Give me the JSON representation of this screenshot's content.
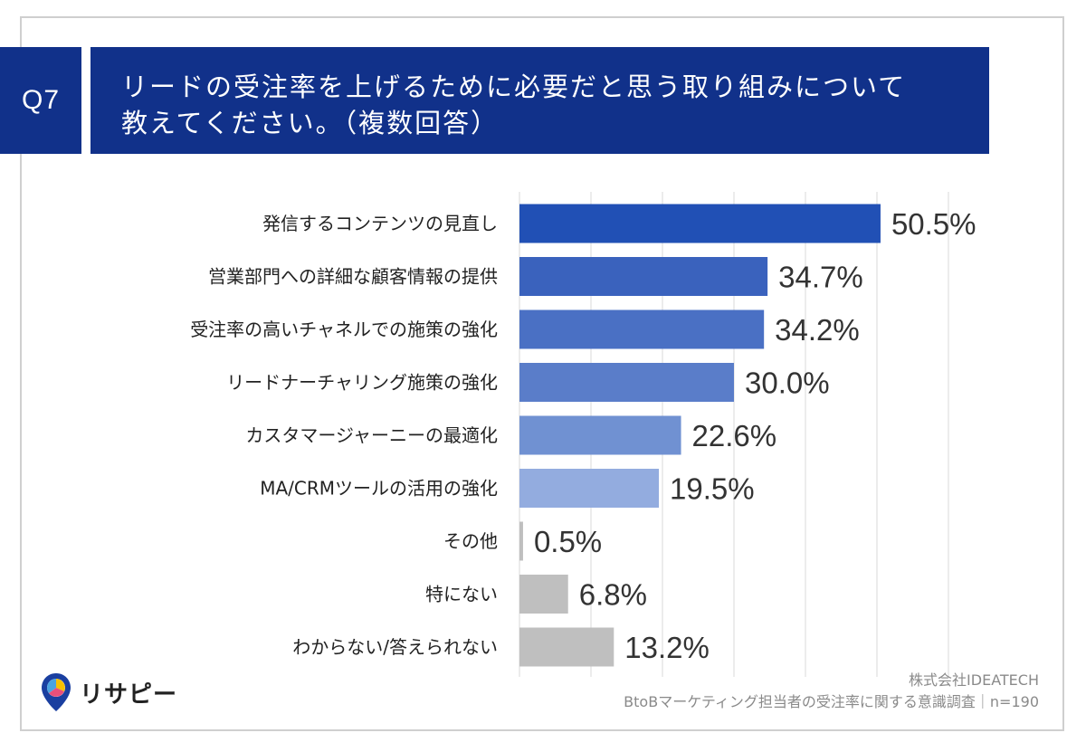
{
  "header": {
    "badge": "Q7",
    "title_line1": "リードの受注率を上げるために必要だと思う取り組みについて",
    "title_line2": "教えてください。（複数回答）"
  },
  "chart_data": {
    "type": "bar",
    "orientation": "horizontal",
    "categories": [
      "発信するコンテンツの見直し",
      "営業部門への詳細な顧客情報の提供",
      "受注率の高いチャネルでの施策の強化",
      "リードナーチャリング施策の強化",
      "カスタマージャーニーの最適化",
      "MA/CRMツールの活用の強化",
      "その他",
      "特にない",
      "わからない/答えられない"
    ],
    "values": [
      50.5,
      34.7,
      34.2,
      30.0,
      22.6,
      19.5,
      0.5,
      6.8,
      13.2
    ],
    "value_labels": [
      "50.5%",
      "34.7%",
      "34.2%",
      "30.0%",
      "22.6%",
      "19.5%",
      "0.5%",
      "6.8%",
      "13.2%"
    ],
    "bar_colors": [
      "#2150b5",
      "#3a62bd",
      "#4a70c4",
      "#5a7dc9",
      "#7091d2",
      "#93acdf",
      "#bfbfbf",
      "#bfbfbf",
      "#bfbfbf"
    ],
    "xlim": [
      0,
      60
    ],
    "grid": true
  },
  "footer": {
    "company": "株式会社IDEATECH",
    "survey": "BtoBマーケティング担当者の受注率に関する意識調査｜n=190"
  },
  "logo": {
    "text": "リサピー",
    "icon": "pin-icon",
    "colors": {
      "pin": "#1a3fa0",
      "accent_yellow": "#f6c000",
      "accent_pink": "#e8507a",
      "accent_blue": "#4aa3df"
    }
  },
  "colors": {
    "header_bg": "#11318a",
    "grid": "#d9d9d9",
    "label_text": "#222222",
    "value_text": "#333333"
  }
}
